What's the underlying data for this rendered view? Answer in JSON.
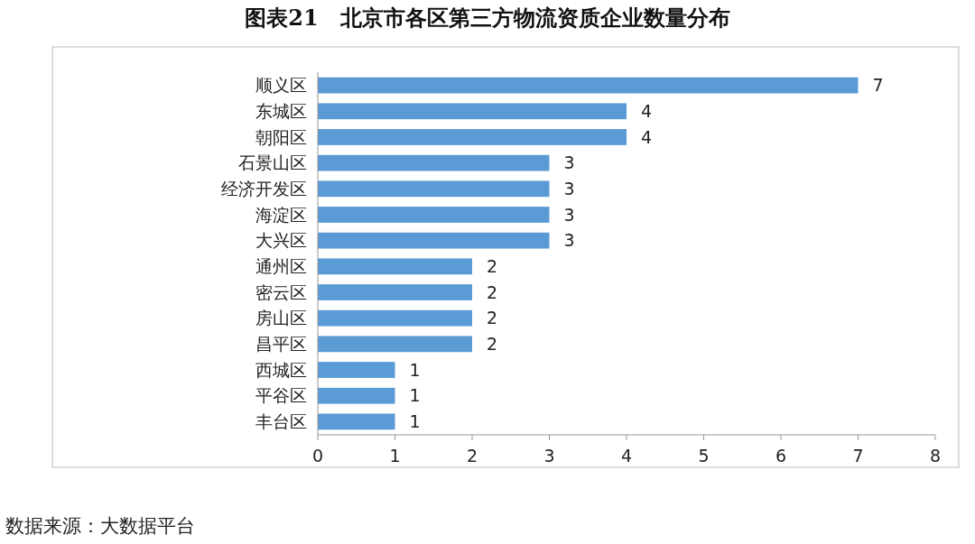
{
  "chart_data": {
    "type": "bar",
    "orientation": "horizontal",
    "title": "图表21　北京市各区第三方物流资质企业数量分布",
    "categories": [
      "顺义区",
      "东城区",
      "朝阳区",
      "石景山区",
      "经济开发区",
      "海淀区",
      "大兴区",
      "通州区",
      "密云区",
      "房山区",
      "昌平区",
      "西城区",
      "平谷区",
      "丰台区"
    ],
    "values": [
      7,
      4,
      4,
      3,
      3,
      3,
      3,
      2,
      2,
      2,
      2,
      1,
      1,
      1
    ],
    "color": "#5b9bd5",
    "data_labels": true,
    "grid": false,
    "xlim": [
      0,
      8
    ],
    "xticks": [
      0,
      1,
      2,
      3,
      4,
      5,
      6,
      7,
      8
    ],
    "annotations": [
      "数据来源：大数据平台"
    ]
  }
}
